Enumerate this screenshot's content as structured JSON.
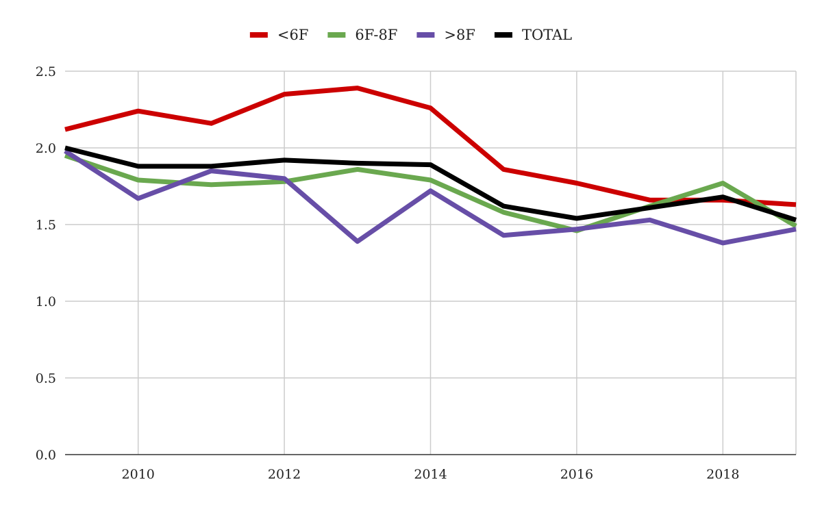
{
  "chart_data": {
    "type": "line",
    "title": "",
    "xlabel": "",
    "ylabel": "",
    "x": [
      2009,
      2010,
      2011,
      2012,
      2013,
      2014,
      2015,
      2016,
      2017,
      2018,
      2019
    ],
    "xlim": [
      2009,
      2019
    ],
    "ylim": [
      0,
      2.5
    ],
    "x_ticks": [
      2010,
      2012,
      2014,
      2016,
      2018
    ],
    "x_tick_labels": [
      "2010",
      "2012",
      "2014",
      "2016",
      "2018"
    ],
    "y_ticks": [
      0,
      0.5,
      1,
      1.5,
      2,
      2.5
    ],
    "y_tick_labels": [
      "0.0",
      "0.5",
      "1.0",
      "1.5",
      "2.0",
      "2.5"
    ],
    "grid": true,
    "legend_position": "top-center",
    "series": [
      {
        "name": "<6F",
        "color": "#cc0000",
        "values": [
          2.12,
          2.24,
          2.16,
          2.35,
          2.39,
          2.26,
          1.86,
          1.77,
          1.66,
          1.66,
          1.63
        ]
      },
      {
        "name": "6F-8F",
        "color": "#6aa84f",
        "values": [
          1.95,
          1.79,
          1.76,
          1.78,
          1.86,
          1.79,
          1.58,
          1.46,
          1.62,
          1.77,
          1.49
        ]
      },
      {
        "name": ">8F",
        "color": "#674ea7",
        "values": [
          1.98,
          1.67,
          1.85,
          1.8,
          1.39,
          1.72,
          1.43,
          1.47,
          1.53,
          1.38,
          1.47
        ]
      },
      {
        "name": "TOTAL",
        "color": "#000000",
        "values": [
          2.0,
          1.88,
          1.88,
          1.92,
          1.9,
          1.89,
          1.62,
          1.54,
          1.61,
          1.68,
          1.53
        ]
      }
    ]
  }
}
